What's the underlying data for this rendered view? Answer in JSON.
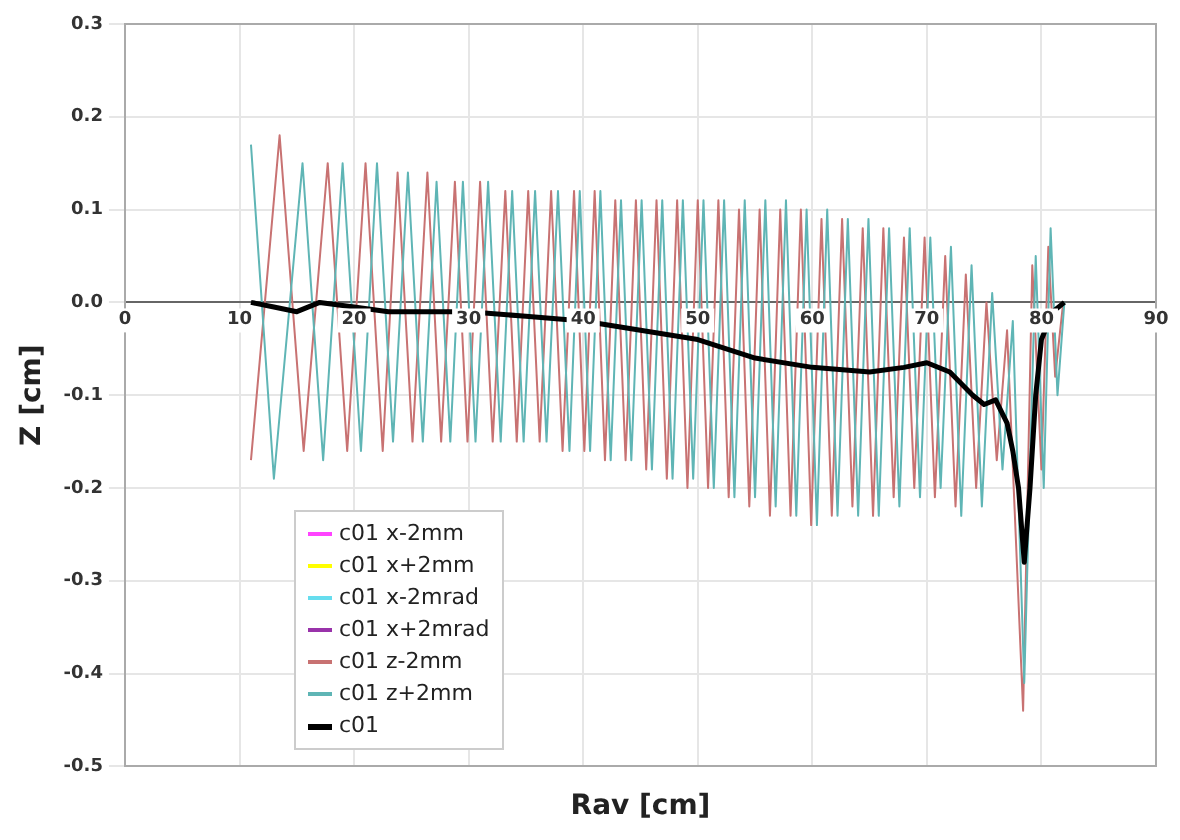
{
  "chart_data": {
    "type": "line",
    "xlabel": "Rav [cm]",
    "ylabel": "Z [cm]",
    "xlim": [
      0,
      90
    ],
    "xticks": [
      0,
      10,
      20,
      30,
      40,
      50,
      60,
      70,
      80,
      90
    ],
    "ylim": [
      -0.5,
      0.3
    ],
    "yticks": [
      {
        "value": -0.5,
        "label": "-0.5"
      },
      {
        "value": -0.4,
        "label": "-0.4"
      },
      {
        "value": -0.3,
        "label": "-0.3"
      },
      {
        "value": -0.2,
        "label": "-0.2"
      },
      {
        "value": -0.1,
        "label": "-0.1"
      },
      {
        "value": 0,
        "label": "0.0"
      },
      {
        "value": 0.1,
        "label": "0.1"
      },
      {
        "value": 0.2,
        "label": "0.2"
      },
      {
        "value": 0.3,
        "label": "0.3"
      }
    ],
    "grid": true,
    "legend": "bottom left",
    "marker": "none",
    "series": [
      {
        "name": "c01 x-2mm",
        "color": "#ff44ff",
        "values": [
          null
        ]
      },
      {
        "name": "c01 x+2mm",
        "color": "#ffff00",
        "values": [
          null
        ]
      },
      {
        "name": "c01 x-2mrad",
        "color": "#66ddee",
        "values": [
          null
        ]
      },
      {
        "name": "c01 x+2mrad",
        "color": "#9933aa",
        "values": [
          null
        ]
      },
      {
        "name": "c01 z-2mm",
        "color": "#c87272",
        "x": [
          11,
          13.5,
          15.6,
          17.7,
          19.4,
          21,
          22.5,
          23.8,
          25.1,
          26.4,
          27.6,
          28.8,
          29.9,
          31,
          32.1,
          33.2,
          34.2,
          35.2,
          36.2,
          37.2,
          38.2,
          39.2,
          40.1,
          41,
          41.9,
          42.8,
          43.7,
          44.6,
          45.5,
          46.4,
          47.3,
          48.2,
          49.1,
          50,
          50.9,
          51.8,
          52.7,
          53.6,
          54.5,
          55.4,
          56.3,
          57.2,
          58.1,
          59,
          59.9,
          60.8,
          61.7,
          62.6,
          63.5,
          64.4,
          65.3,
          66.2,
          67.1,
          68,
          68.9,
          69.8,
          70.7,
          71.6,
          72.5,
          73.4,
          74.3,
          75.2,
          76.1,
          77,
          78.4,
          79.2,
          80,
          80.6,
          81.2,
          81.9
        ],
        "values": [
          -0.17,
          0.18,
          -0.16,
          0.15,
          -0.16,
          0.15,
          -0.16,
          0.14,
          -0.15,
          0.14,
          -0.15,
          0.13,
          -0.15,
          0.13,
          -0.15,
          0.12,
          -0.15,
          0.12,
          -0.15,
          0.12,
          -0.16,
          0.12,
          -0.16,
          0.12,
          -0.17,
          0.11,
          -0.17,
          0.11,
          -0.18,
          0.11,
          -0.19,
          0.11,
          -0.2,
          0.11,
          -0.2,
          0.11,
          -0.21,
          0.1,
          -0.22,
          0.1,
          -0.23,
          0.1,
          -0.23,
          0.1,
          -0.24,
          0.09,
          -0.23,
          0.09,
          -0.22,
          0.08,
          -0.23,
          0.08,
          -0.21,
          0.07,
          -0.2,
          0.07,
          -0.21,
          0.05,
          -0.22,
          0.03,
          -0.2,
          0,
          -0.17,
          -0.03,
          -0.44,
          0.04,
          -0.18,
          0.06,
          -0.08,
          0
        ]
      },
      {
        "name": "c01 z+2mm",
        "color": "#5fb5b5",
        "x": [
          11,
          13,
          15.5,
          17.3,
          19,
          20.6,
          22,
          23.4,
          24.7,
          26,
          27.2,
          28.4,
          29.5,
          30.6,
          31.7,
          32.8,
          33.8,
          34.8,
          35.8,
          36.8,
          37.8,
          38.8,
          39.7,
          40.6,
          41.5,
          42.4,
          43.3,
          44.2,
          45.1,
          46,
          46.9,
          47.8,
          48.7,
          49.6,
          50.5,
          51.4,
          52.3,
          53.2,
          54.1,
          55,
          55.9,
          56.8,
          57.7,
          58.6,
          59.5,
          60.4,
          61.3,
          62.2,
          63.1,
          64,
          64.9,
          65.8,
          66.7,
          67.6,
          68.5,
          69.4,
          70.3,
          71.2,
          72.1,
          73,
          73.9,
          74.8,
          75.7,
          76.6,
          77.5,
          78.5,
          79.5,
          80.2,
          80.8,
          81.4,
          82
        ],
        "values": [
          0.17,
          -0.19,
          0.15,
          -0.17,
          0.15,
          -0.16,
          0.15,
          -0.15,
          0.14,
          -0.15,
          0.13,
          -0.15,
          0.13,
          -0.15,
          0.13,
          -0.15,
          0.12,
          -0.15,
          0.12,
          -0.15,
          0.12,
          -0.16,
          0.12,
          -0.16,
          0.12,
          -0.17,
          0.11,
          -0.17,
          0.11,
          -0.18,
          0.11,
          -0.19,
          0.11,
          -0.19,
          0.11,
          -0.2,
          0.11,
          -0.21,
          0.11,
          -0.21,
          0.11,
          -0.22,
          0.11,
          -0.23,
          0.1,
          -0.24,
          0.1,
          -0.23,
          0.09,
          -0.23,
          0.09,
          -0.23,
          0.08,
          -0.22,
          0.08,
          -0.21,
          0.07,
          -0.2,
          0.06,
          -0.23,
          0.04,
          -0.22,
          0.01,
          -0.18,
          -0.02,
          -0.41,
          0.05,
          -0.2,
          0.08,
          -0.1,
          0
        ]
      },
      {
        "name": "c01",
        "color": "#000000",
        "x": [
          11,
          13,
          15,
          17,
          20,
          23,
          26,
          30,
          35,
          40,
          45,
          50,
          55,
          60,
          65,
          68,
          70,
          72,
          74,
          75,
          76,
          77,
          77.5,
          78,
          78.5,
          79,
          79.5,
          80,
          81,
          82
        ],
        "values": [
          0,
          -0.005,
          -0.01,
          0,
          -0.005,
          -0.01,
          -0.01,
          -0.01,
          -0.015,
          -0.02,
          -0.03,
          -0.04,
          -0.06,
          -0.07,
          -0.075,
          -0.07,
          -0.065,
          -0.075,
          -0.1,
          -0.11,
          -0.105,
          -0.13,
          -0.16,
          -0.2,
          -0.28,
          -0.2,
          -0.1,
          -0.04,
          -0.01,
          0
        ]
      }
    ]
  }
}
